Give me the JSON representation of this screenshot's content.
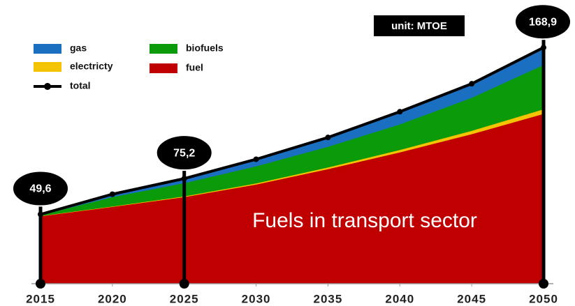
{
  "chart_data": {
    "type": "stacked_area",
    "annotations": [
      "unit:  MTOE",
      "Fuels in transport sector"
    ],
    "x": [
      2015,
      2020,
      2025,
      2030,
      2035,
      2040,
      2045,
      2050
    ],
    "xlim": [
      2015,
      2050
    ],
    "xticks": [
      2015,
      2020,
      2025,
      2030,
      2035,
      2040,
      2045,
      2050
    ],
    "ylim": [
      0,
      170
    ],
    "series": [
      {
        "name": "fuel",
        "color": "#c00000",
        "values": [
          48.3,
          55,
          62,
          71,
          82,
          94,
          107,
          121.5
        ]
      },
      {
        "name": "electricty",
        "color": "#f5c400",
        "values": [
          0.2,
          0.3,
          0.5,
          0.8,
          1.2,
          1.7,
          2.4,
          3.3
        ]
      },
      {
        "name": "biofuels",
        "color": "#0a9a0a",
        "values": [
          0.6,
          6.7,
          9.5,
          12.2,
          14.8,
          18.3,
          23.6,
          31.7
        ]
      },
      {
        "name": "gas",
        "color": "#1a6fc0",
        "values": [
          0.5,
          2.0,
          3.2,
          5.0,
          6.6,
          9.0,
          10,
          12.4
        ]
      }
    ],
    "total": {
      "name": "total",
      "color": "#000000",
      "values": [
        49.6,
        64,
        75.2,
        89,
        104.6,
        123,
        143,
        168.9
      ],
      "value_labels": [
        "49,6",
        null,
        "75,2",
        null,
        null,
        null,
        null,
        "168,9"
      ]
    }
  }
}
